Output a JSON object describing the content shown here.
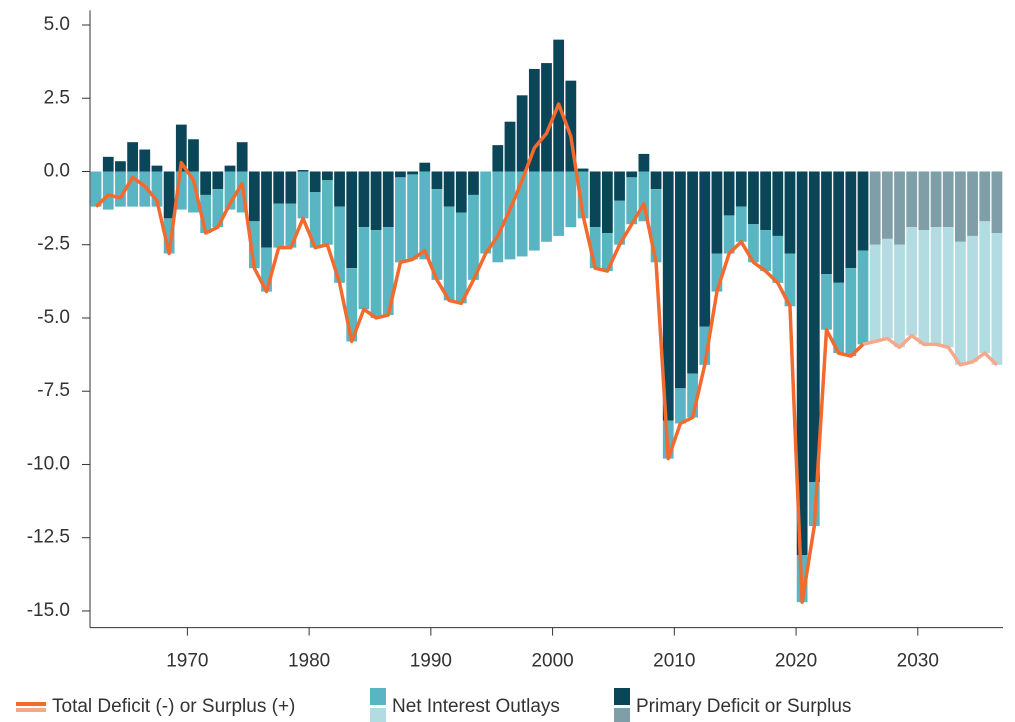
{
  "chart_data": {
    "type": "bar",
    "x": [
      1962,
      1963,
      1964,
      1965,
      1966,
      1967,
      1968,
      1969,
      1970,
      1971,
      1972,
      1973,
      1974,
      1975,
      1976,
      1977,
      1978,
      1979,
      1980,
      1981,
      1982,
      1983,
      1984,
      1985,
      1986,
      1987,
      1988,
      1989,
      1990,
      1991,
      1992,
      1993,
      1994,
      1995,
      1996,
      1997,
      1998,
      1999,
      2000,
      2001,
      2002,
      2003,
      2004,
      2005,
      2006,
      2007,
      2008,
      2009,
      2010,
      2011,
      2012,
      2013,
      2014,
      2015,
      2016,
      2017,
      2018,
      2019,
      2020,
      2021,
      2022,
      2023,
      2024,
      2025,
      2026,
      2027,
      2028,
      2029,
      2030,
      2031,
      2032,
      2033,
      2034,
      2035,
      2036
    ],
    "series": [
      {
        "name": "Total Deficit (-) or Surplus (+)",
        "type": "line",
        "color": "#f26a2e",
        "projected_color": "#f5a98a",
        "values": [
          -1.2,
          -0.8,
          -0.9,
          -0.2,
          -0.5,
          -1.0,
          -2.8,
          0.3,
          -0.3,
          -2.1,
          -1.9,
          -1.1,
          -0.4,
          -3.3,
          -4.1,
          -2.6,
          -2.6,
          -1.6,
          -2.6,
          -2.5,
          -3.8,
          -5.8,
          -4.7,
          -5.0,
          -4.9,
          -3.1,
          -3.0,
          -2.7,
          -3.7,
          -4.4,
          -4.5,
          -3.7,
          -2.8,
          -2.2,
          -1.3,
          -0.3,
          0.8,
          1.3,
          2.3,
          1.2,
          -1.5,
          -3.3,
          -3.4,
          -2.5,
          -1.8,
          -1.1,
          -3.1,
          -9.8,
          -8.6,
          -8.4,
          -6.6,
          -4.1,
          -2.8,
          -2.4,
          -3.1,
          -3.4,
          -3.8,
          -4.6,
          -14.7,
          -12.1,
          -5.4,
          -6.2,
          -6.3,
          -5.9,
          -5.8,
          -5.7,
          -6.0,
          -5.6,
          -5.9,
          -5.9,
          -6.0,
          -6.6,
          -6.5,
          -6.2,
          -6.6
        ]
      },
      {
        "name": "Net Interest Outlays",
        "color": "#5ab5c3",
        "projected_color": "#b2dce2",
        "values": [
          -1.2,
          -1.3,
          -1.2,
          -1.2,
          -1.2,
          -1.2,
          -1.2,
          -1.3,
          -1.4,
          -1.3,
          -1.3,
          -1.3,
          -1.4,
          -1.6,
          -1.5,
          -1.5,
          -1.5,
          -1.6,
          -1.9,
          -2.2,
          -2.6,
          -2.5,
          -2.8,
          -3.0,
          -3.0,
          -2.9,
          -2.9,
          -3.0,
          -3.1,
          -3.2,
          -3.1,
          -2.9,
          -2.8,
          -3.1,
          -3.0,
          -2.9,
          -2.7,
          -2.4,
          -2.2,
          -1.9,
          -1.6,
          -1.4,
          -1.3,
          -1.5,
          -1.6,
          -1.7,
          -2.5,
          -1.3,
          -1.2,
          -1.5,
          -1.3,
          -1.3,
          -1.3,
          -1.2,
          -1.3,
          -1.4,
          -1.6,
          -1.8,
          -1.6,
          -1.5,
          -1.9,
          -2.4,
          -3.0,
          -3.2,
          -3.3,
          -3.4,
          -3.5,
          -3.7,
          -3.9,
          -4.0,
          -4.1,
          -4.2,
          -4.3,
          -4.5,
          -4.5
        ]
      },
      {
        "name": "Primary Deficit or Surplus",
        "color": "#0a4658",
        "projected_color": "#7f9ea8",
        "values": [
          0.0,
          0.5,
          0.35,
          1.0,
          0.75,
          0.2,
          -1.6,
          1.6,
          1.1,
          -0.8,
          -0.6,
          0.2,
          1.0,
          -1.7,
          -2.6,
          -1.1,
          -1.1,
          0.05,
          -0.7,
          -0.3,
          -1.2,
          -3.3,
          -1.9,
          -2.0,
          -1.9,
          -0.2,
          -0.1,
          0.3,
          -0.6,
          -1.2,
          -1.4,
          -0.8,
          0.0,
          0.9,
          1.7,
          2.6,
          3.5,
          3.7,
          4.5,
          3.1,
          0.1,
          -1.9,
          -2.1,
          -1.0,
          -0.2,
          0.6,
          -0.6,
          -8.5,
          -7.4,
          -6.9,
          -5.3,
          -2.8,
          -1.5,
          -1.2,
          -1.8,
          -2.0,
          -2.2,
          -2.8,
          -13.1,
          -10.6,
          -3.5,
          -3.8,
          -3.3,
          -2.7,
          -2.5,
          -2.3,
          -2.5,
          -1.9,
          -2.0,
          -1.9,
          -1.9,
          -2.4,
          -2.2,
          -1.7,
          -2.1
        ]
      }
    ],
    "projection_from": 2026,
    "xlim": [
      1962,
      2037
    ],
    "xticks": [
      1970,
      1980,
      1990,
      2000,
      2010,
      2020,
      2030
    ],
    "ylim": [
      -15.5,
      5.5
    ],
    "yticks": [
      {
        "value": 5,
        "label": "5.0"
      },
      2.5,
      {
        "value": 0,
        "label": "0.0"
      },
      -2.5,
      {
        "value": -5,
        "label": "-5.0"
      },
      -7.5,
      {
        "value": -10,
        "label": "-10.0"
      },
      -12.5,
      {
        "value": -15,
        "label": "-15.0"
      }
    ],
    "grid": false,
    "legend": "bottom"
  }
}
